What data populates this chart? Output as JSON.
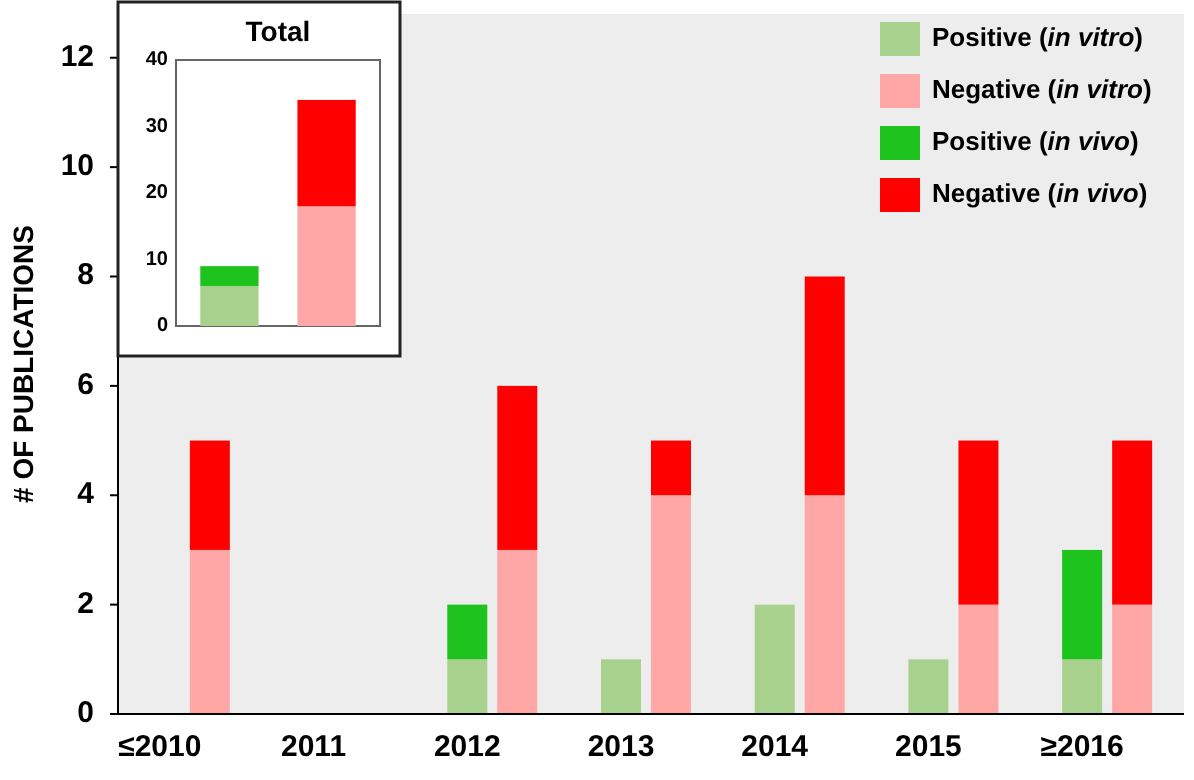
{
  "chart_data": [
    {
      "type": "bar",
      "ylabel": "# OF PUBLICATIONS",
      "categories": [
        "≤2010",
        null,
        "2011",
        null,
        "2012",
        null,
        "2013",
        null,
        "2014",
        null,
        "2015",
        null,
        "≥2016",
        null
      ],
      "stacked": true,
      "ylim": [
        0,
        12.8
      ],
      "yticks": [
        0,
        2,
        4,
        6,
        8,
        10,
        12
      ],
      "legend": "top right",
      "series": [
        {
          "name": "Positive (in vitro)",
          "color": "#a9d18e",
          "values": [
            0,
            null,
            0,
            null,
            1,
            null,
            1,
            null,
            2,
            null,
            1,
            null,
            1,
            null
          ]
        },
        {
          "name": "Negative (in vitro)",
          "color": "#ffa6a6",
          "values": [
            null,
            3,
            null,
            0,
            null,
            3,
            null,
            4,
            null,
            4,
            null,
            2,
            null,
            2
          ]
        },
        {
          "name": "Positive (in vivo)",
          "color": "#1ec31e",
          "values": [
            0,
            null,
            0,
            null,
            1,
            null,
            0,
            null,
            0,
            null,
            0,
            null,
            2,
            null
          ]
        },
        {
          "name": "Negative (in vivo)",
          "color": "#ff0000",
          "values": [
            null,
            2,
            null,
            0,
            null,
            3,
            null,
            1,
            null,
            4,
            null,
            3,
            null,
            3
          ]
        }
      ]
    },
    {
      "type": "bar",
      "title": "Total",
      "categories": [
        null,
        null
      ],
      "stacked": true,
      "ylim": [
        0,
        40
      ],
      "yticks": [
        0,
        10,
        20,
        30,
        40
      ],
      "tick_labels": "y",
      "series": [
        {
          "colors": [
            "#a9d18e",
            "#ffa6a6"
          ],
          "values": [
            6,
            18
          ]
        },
        {
          "colors": [
            "#1ec31e",
            "#ff0000"
          ],
          "values": [
            3,
            16
          ]
        }
      ]
    }
  ]
}
